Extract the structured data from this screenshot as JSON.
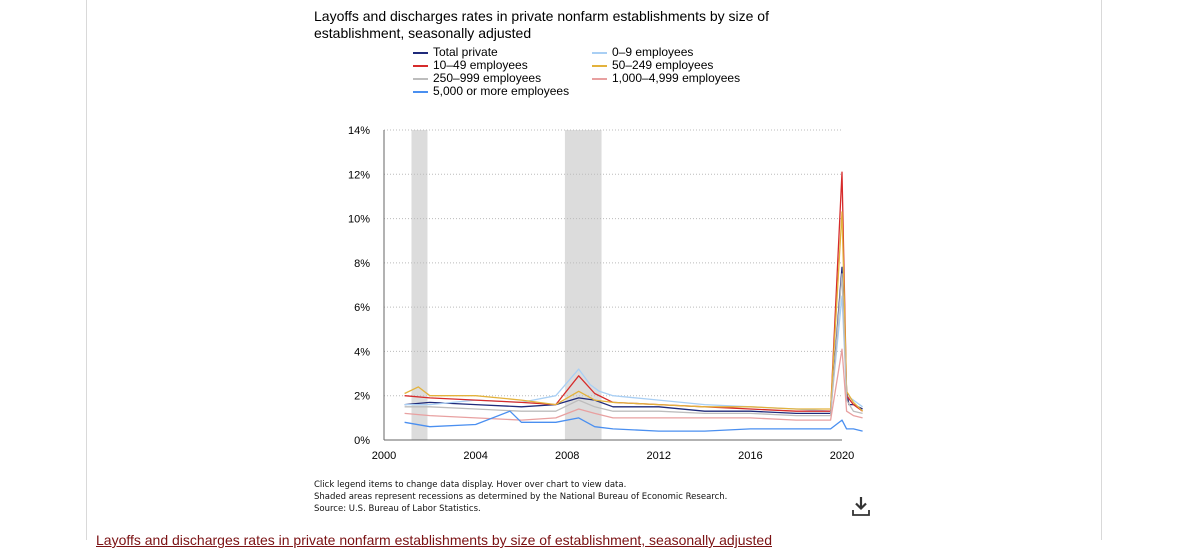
{
  "chart": {
    "title": "Layoffs and discharges rates in private nonfarm establishments by size of establishment, seasonally adjusted"
  },
  "legend": {
    "col1": [
      {
        "label": "Total private",
        "color": "#1f2a7a"
      },
      {
        "label": "10–49 employees",
        "color": "#d62b2b"
      },
      {
        "label": "250–999 employees",
        "color": "#bdbdbd"
      },
      {
        "label": "5,000 or more employees",
        "color": "#4a8ff0"
      }
    ],
    "col2": [
      {
        "label": "0–9 employees",
        "color": "#a9cff4"
      },
      {
        "label": "50–249 employees",
        "color": "#e3b23c"
      },
      {
        "label": "1,000–4,999 employees",
        "color": "#e8a0a0"
      }
    ]
  },
  "notes": {
    "line1": "Click legend items to change data display. Hover over chart to view data.",
    "line2": "Shaded areas represent recessions as determined by the National Bureau of Economic Research.",
    "line3": "Source: U.S. Bureau of Labor Statistics."
  },
  "bottom_link": "Layoffs and discharges rates in private nonfarm establishments by size of establishment, seasonally adjusted",
  "download_icon": "download-icon",
  "chart_data": {
    "type": "line",
    "title": "Layoffs and discharges rates in private nonfarm establishments by size of establishment, seasonally adjusted",
    "x_range": [
      2000,
      2020
    ],
    "ylim": [
      0,
      14
    ],
    "x_ticks": [
      "2000",
      "2004",
      "2008",
      "2012",
      "2016",
      "2020"
    ],
    "y_ticks": [
      "0%",
      "2%",
      "4%",
      "6%",
      "8%",
      "10%",
      "12%",
      "14%"
    ],
    "grid": true,
    "recessions": [
      [
        2001.2,
        2001.9
      ],
      [
        2007.9,
        2009.5
      ]
    ],
    "series": [
      {
        "name": "Total private",
        "color": "#1f2a7a",
        "x": [
          2000.9,
          2002,
          2004,
          2006,
          2007.5,
          2008.5,
          2009.2,
          2010,
          2012,
          2014,
          2016,
          2018,
          2019.5,
          2020.0,
          2020.2,
          2020.3,
          2020.5,
          2020.9
        ],
        "y": [
          1.6,
          1.7,
          1.6,
          1.5,
          1.6,
          1.9,
          1.8,
          1.5,
          1.5,
          1.3,
          1.3,
          1.2,
          1.2,
          7.8,
          2.2,
          1.6,
          1.6,
          1.4
        ]
      },
      {
        "name": "0–9 employees",
        "color": "#a9cff4",
        "x": [
          2000.9,
          2002,
          2004,
          2006,
          2007.5,
          2008.5,
          2009,
          2009.4,
          2010,
          2012,
          2014,
          2016,
          2018,
          2019.5,
          2020.0,
          2020.2,
          2020.5,
          2020.9
        ],
        "y": [
          1.6,
          1.6,
          1.8,
          1.7,
          2.0,
          3.2,
          2.5,
          2.2,
          2.0,
          1.8,
          1.6,
          1.5,
          1.4,
          1.3,
          6.5,
          2.0,
          1.8,
          1.5
        ]
      },
      {
        "name": "10–49 employees",
        "color": "#d62b2b",
        "x": [
          2000.9,
          2002,
          2004,
          2006,
          2007.5,
          2008.5,
          2009.2,
          2010,
          2012,
          2014,
          2016,
          2018,
          2019.5,
          2020.0,
          2020.2,
          2020.5,
          2020.9
        ],
        "y": [
          2.0,
          1.9,
          1.8,
          1.7,
          1.6,
          2.9,
          2.1,
          1.7,
          1.6,
          1.5,
          1.4,
          1.3,
          1.3,
          12.1,
          2.0,
          1.6,
          1.3
        ]
      },
      {
        "name": "50–249 employees",
        "color": "#e3b23c",
        "x": [
          2000.9,
          2001.5,
          2002,
          2004,
          2006,
          2007.5,
          2008.5,
          2009.2,
          2010,
          2012,
          2014,
          2016,
          2018,
          2019.5,
          2020.0,
          2020.2,
          2020.5,
          2020.9
        ],
        "y": [
          2.1,
          2.4,
          2.0,
          2.0,
          1.8,
          1.6,
          2.2,
          1.8,
          1.7,
          1.6,
          1.5,
          1.5,
          1.4,
          1.4,
          10.3,
          2.2,
          1.7,
          1.3
        ]
      },
      {
        "name": "250–999 employees",
        "color": "#bdbdbd",
        "x": [
          2000.9,
          2002,
          2004,
          2006,
          2007.5,
          2008.5,
          2009.2,
          2010,
          2012,
          2014,
          2016,
          2018,
          2019.5,
          2020.0,
          2020.2,
          2020.5,
          2020.9
        ],
        "y": [
          1.5,
          1.5,
          1.4,
          1.3,
          1.3,
          1.8,
          1.5,
          1.3,
          1.3,
          1.2,
          1.2,
          1.1,
          1.1,
          7.5,
          1.8,
          1.3,
          1.2
        ]
      },
      {
        "name": "1,000–4,999 employees",
        "color": "#e8a0a0",
        "x": [
          2000.9,
          2002,
          2004,
          2006,
          2007.5,
          2008.5,
          2009.2,
          2010,
          2012,
          2014,
          2016,
          2018,
          2019.5,
          2020.0,
          2020.2,
          2020.5,
          2020.9
        ],
        "y": [
          1.2,
          1.1,
          1.0,
          0.9,
          1.0,
          1.4,
          1.2,
          1.0,
          1.0,
          1.0,
          1.0,
          0.9,
          0.9,
          4.1,
          1.3,
          1.1,
          1.0
        ]
      },
      {
        "name": "5,000 or more employees",
        "color": "#4a8ff0",
        "x": [
          2000.9,
          2002,
          2004,
          2005.5,
          2006,
          2007.5,
          2008.5,
          2009.2,
          2010,
          2012,
          2014,
          2016,
          2018,
          2019.5,
          2020.0,
          2020.2,
          2020.5,
          2020.9
        ],
        "y": [
          0.8,
          0.6,
          0.7,
          1.3,
          0.8,
          0.8,
          1.0,
          0.6,
          0.5,
          0.4,
          0.4,
          0.5,
          0.5,
          0.5,
          0.9,
          0.5,
          0.5,
          0.4
        ]
      }
    ]
  }
}
